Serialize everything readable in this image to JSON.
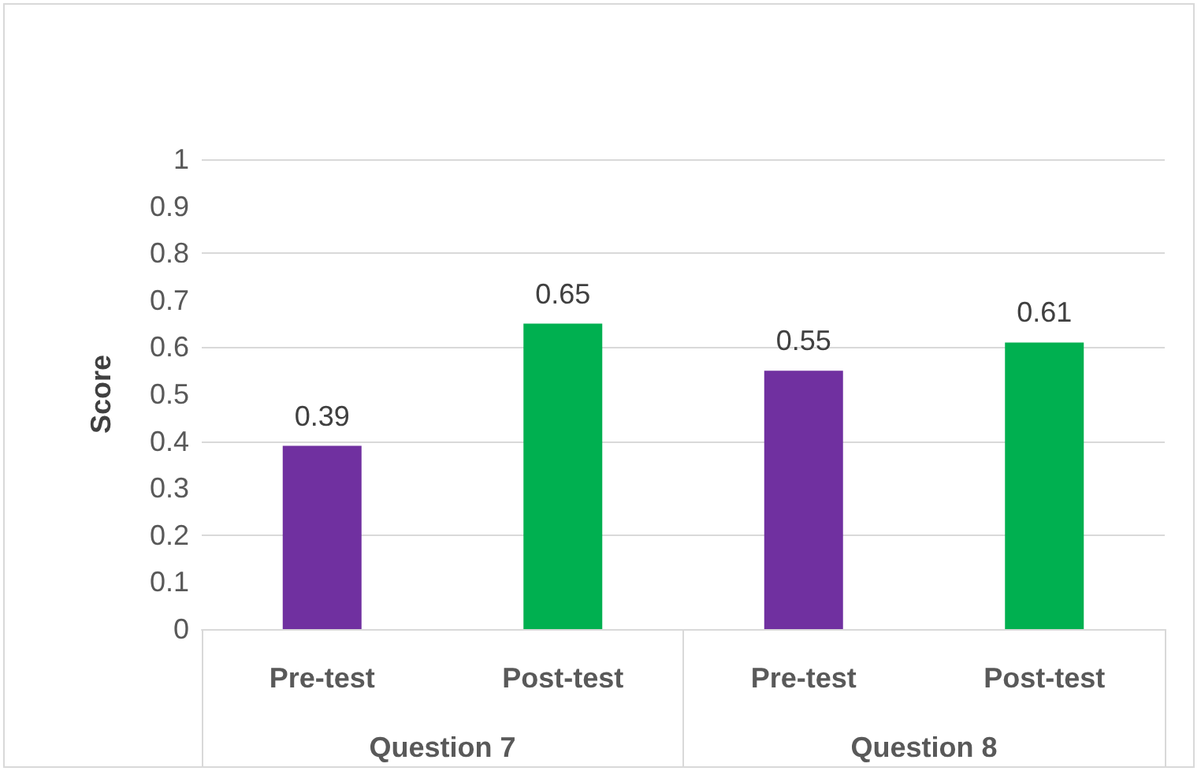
{
  "chart_data": {
    "type": "bar",
    "ylabel": "Score",
    "categories": [
      "Pre-test",
      "Post-test",
      "Pre-test",
      "Post-test"
    ],
    "values": [
      0.39,
      0.65,
      0.55,
      0.61
    ],
    "colors": [
      "#7030a0",
      "#00b050",
      "#7030a0",
      "#00b050"
    ],
    "annotations": [
      "Question 7",
      "Question 8"
    ],
    "ylim": [
      0,
      1
    ],
    "yticks": [
      0,
      0.1,
      0.2,
      0.3,
      0.4,
      0.5,
      0.6,
      0.7,
      0.8,
      0.9,
      1
    ],
    "grid": "y",
    "data_labels": true
  }
}
